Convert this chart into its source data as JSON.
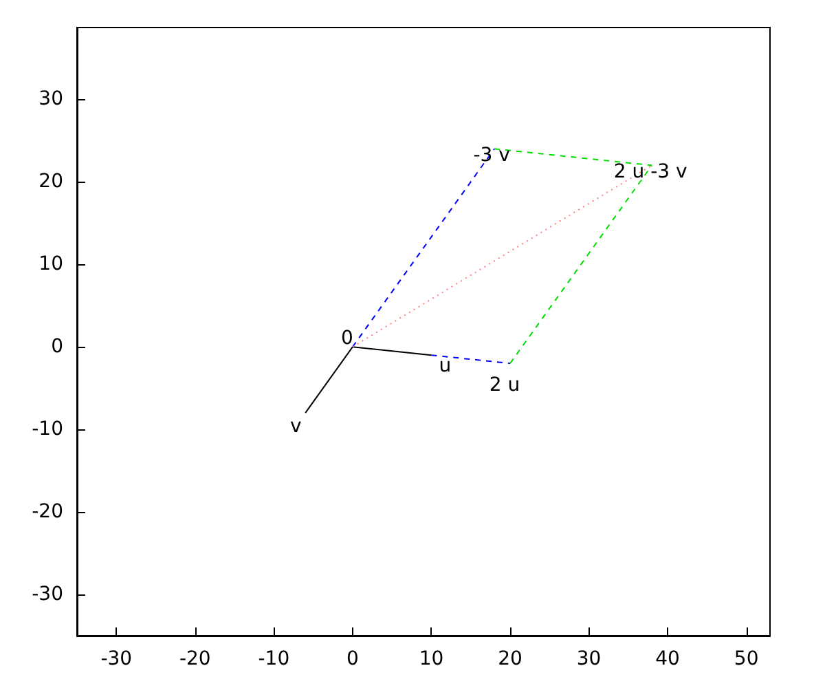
{
  "chart_data": {
    "type": "line",
    "xlim": [
      -35,
      53
    ],
    "xticks": [
      -30,
      -20,
      -10,
      0,
      10,
      20,
      30,
      40,
      50
    ],
    "ylim": [
      -35,
      38.7
    ],
    "yticks": [
      -30,
      -20,
      -10,
      0,
      10,
      20,
      30
    ],
    "grid": false,
    "marker": "none",
    "series": [
      {
        "color": "#000000",
        "x": [
          0,
          10
        ],
        "values": [
          0,
          -1
        ],
        "line_style": "solid"
      },
      {
        "color": "#000000",
        "x": [
          0,
          -6
        ],
        "values": [
          0,
          -8
        ],
        "line_style": "solid"
      },
      {
        "color": "#0000ff",
        "x": [
          0,
          18,
          null,
          10,
          20
        ],
        "values": [
          0,
          24,
          null,
          -1,
          -2
        ],
        "line_style": "dashed"
      },
      {
        "color": "#00dd00",
        "x": [
          18,
          38,
          null,
          20,
          38
        ],
        "values": [
          24,
          22,
          null,
          -2,
          22
        ],
        "line_style": "dashed"
      },
      {
        "color": "#ff8080",
        "x": [
          0,
          38
        ],
        "values": [
          0,
          22
        ],
        "line_style": "dotted"
      }
    ],
    "annotations": [
      {
        "text": "0",
        "x": 0,
        "y": 0
      },
      {
        "text": "u",
        "x": 10,
        "y": -1
      },
      {
        "text": "2 u",
        "x": 20,
        "y": -2
      },
      {
        "text": "v",
        "x": -6,
        "y": -8
      },
      {
        "text": "-3 v",
        "x": 18,
        "y": 24
      },
      {
        "text": "2 u -3 v",
        "x": 38,
        "y": 22
      }
    ]
  }
}
